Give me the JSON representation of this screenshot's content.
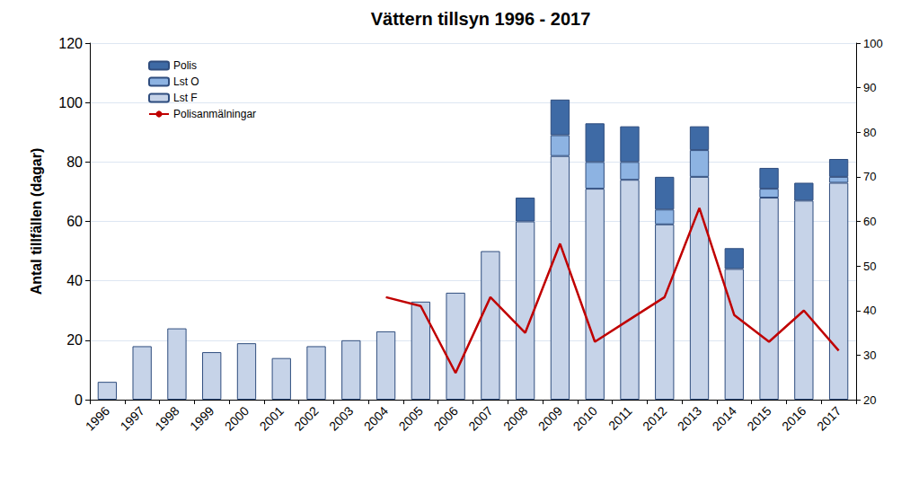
{
  "chart_data": {
    "type": "bar",
    "title": "Vättern tillsyn 1996 - 2017",
    "y_label": "Antal tillfällen (dagar)",
    "categories": [
      "1996",
      "1997",
      "1998",
      "1999",
      "2000",
      "2001",
      "2002",
      "2003",
      "2004",
      "2005",
      "2006",
      "2007",
      "2008",
      "2009",
      "2010",
      "2011",
      "2012",
      "2013",
      "2014",
      "2015",
      "2016",
      "2017"
    ],
    "stacked": true,
    "grid": true,
    "legend": "upper left",
    "series": [
      {
        "name": "Lst F",
        "type": "bar",
        "color": "#c6d3e8",
        "values": [
          6,
          18,
          24,
          16,
          19,
          14,
          18,
          20,
          23,
          33,
          36,
          50,
          60,
          82,
          71,
          74,
          59,
          75,
          44,
          68,
          67,
          73
        ]
      },
      {
        "name": "Lst O",
        "type": "bar",
        "color": "#8db3e2",
        "values": [
          null,
          null,
          null,
          null,
          null,
          null,
          null,
          null,
          null,
          null,
          null,
          null,
          null,
          7,
          9,
          6,
          5,
          9,
          null,
          3,
          null,
          2
        ]
      },
      {
        "name": "Polis",
        "type": "bar",
        "color": "#3e6aa5",
        "values": [
          null,
          null,
          null,
          null,
          null,
          null,
          null,
          null,
          null,
          null,
          null,
          null,
          8,
          12,
          13,
          12,
          11,
          8,
          7,
          7,
          6,
          6
        ]
      },
      {
        "name": "Polisanmälningar",
        "type": "line",
        "axis": "y2",
        "color": "#c00000",
        "values": [
          null,
          null,
          null,
          null,
          null,
          null,
          null,
          null,
          43,
          41,
          26,
          43,
          35,
          55,
          33,
          38,
          43,
          63,
          39,
          33,
          40,
          31
        ]
      }
    ],
    "ylim": [
      0,
      120
    ],
    "yticks": [
      0,
      20,
      40,
      60,
      80,
      100,
      120
    ],
    "y2lim": [
      20,
      100
    ],
    "y2ticks": [
      20,
      30,
      40,
      50,
      60,
      70,
      80,
      90,
      100
    ]
  }
}
